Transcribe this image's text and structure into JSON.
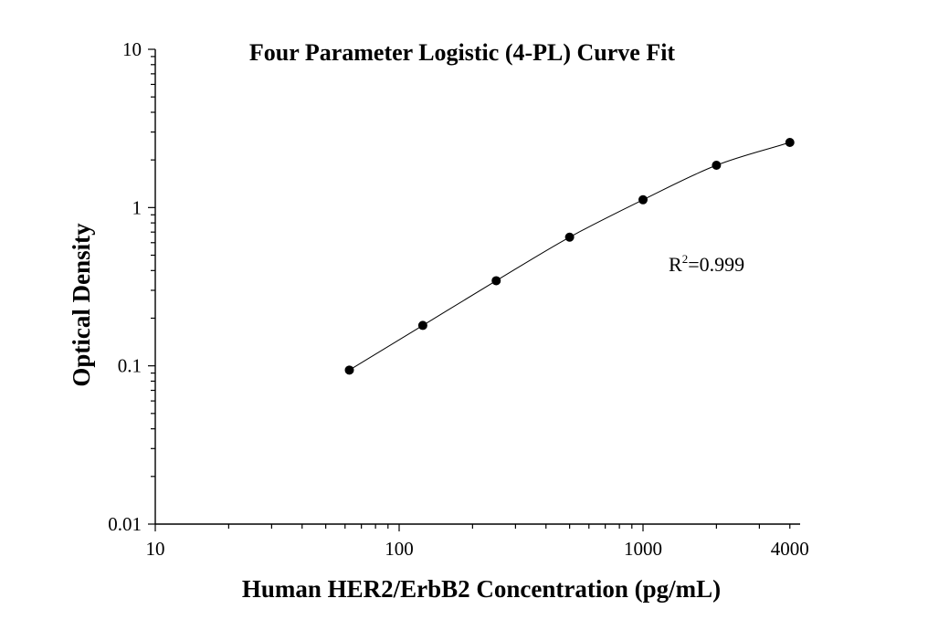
{
  "chart_data": {
    "type": "scatter",
    "title": "Four Parameter Logistic (4-PL) Curve Fit",
    "xlabel": "Human HER2/ErbB2 Concentration (pg/mL)",
    "ylabel": "Optical Density",
    "x_scale": "log",
    "y_scale": "log",
    "xlim": [
      10,
      4000
    ],
    "ylim": [
      0.01,
      10
    ],
    "x_ticks": [
      {
        "value": 10,
        "label": "10"
      },
      {
        "value": 100,
        "label": "100"
      },
      {
        "value": 1000,
        "label": "1000"
      },
      {
        "value": 4000,
        "label": "4000"
      }
    ],
    "y_ticks": [
      {
        "value": 0.01,
        "label": "0.01"
      },
      {
        "value": 0.1,
        "label": "0.1"
      },
      {
        "value": 1,
        "label": "1"
      },
      {
        "value": 10,
        "label": "10"
      }
    ],
    "series": [
      {
        "points": [
          {
            "x": 62.5,
            "y": 0.094
          },
          {
            "x": 125,
            "y": 0.18
          },
          {
            "x": 250,
            "y": 0.345
          },
          {
            "x": 500,
            "y": 0.65
          },
          {
            "x": 1000,
            "y": 1.12
          },
          {
            "x": 2000,
            "y": 1.85
          },
          {
            "x": 4000,
            "y": 2.58
          }
        ],
        "fit": "4-PL",
        "color": "#000000"
      }
    ],
    "annotation": {
      "r_prefix": "R",
      "r_sup": "2",
      "r_value": "=0.999"
    },
    "grid": false,
    "legend": "none"
  }
}
